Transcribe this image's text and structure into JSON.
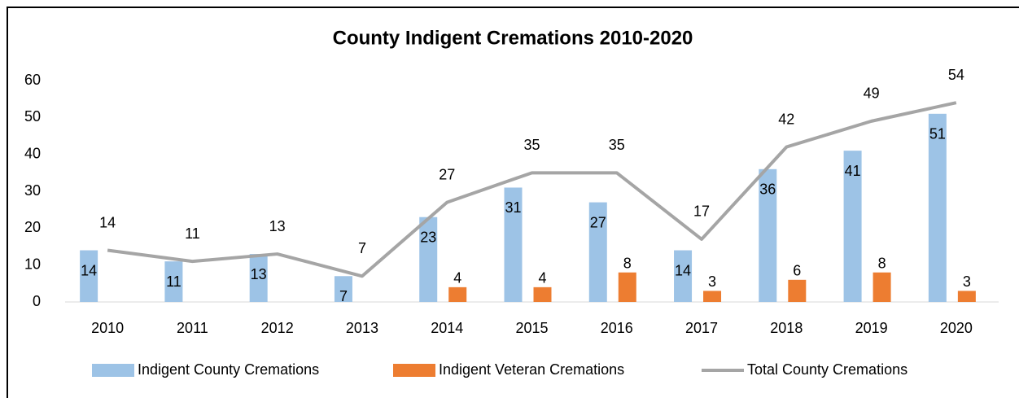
{
  "chart_data": {
    "type": "bar_line",
    "title": "County Indigent Cremations 2010-2020",
    "categories": [
      "2010",
      "2011",
      "2012",
      "2013",
      "2014",
      "2015",
      "2016",
      "2017",
      "2018",
      "2019",
      "2020"
    ],
    "series": [
      {
        "name": "Indigent County Cremations",
        "type": "bar",
        "color": "#9dc3e6",
        "values": [
          14,
          11,
          13,
          7,
          23,
          31,
          27,
          14,
          36,
          41,
          51
        ]
      },
      {
        "name": "Indigent Veteran Cremations",
        "type": "bar",
        "color": "#ed7d31",
        "values": [
          null,
          null,
          null,
          null,
          4,
          4,
          8,
          3,
          6,
          8,
          3
        ]
      },
      {
        "name": "Total County Cremations",
        "type": "line",
        "color": "#a5a5a5",
        "values": [
          14,
          11,
          13,
          7,
          27,
          35,
          35,
          17,
          42,
          49,
          54
        ]
      }
    ],
    "ylim": [
      0,
      60
    ],
    "yticks": [
      0,
      10,
      20,
      30,
      40,
      50,
      60
    ],
    "grid": false,
    "legend": "bottom"
  }
}
